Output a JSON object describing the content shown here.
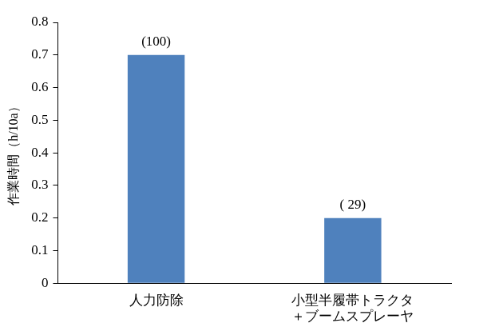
{
  "chart_data": {
    "type": "bar",
    "y_label": "作業時間（h/10a）",
    "categories": [
      "人力防除",
      "小型半履帯トラクタ＋ブームスプレーヤ"
    ],
    "values": [
      0.7,
      0.2
    ],
    "annotations": [
      "(100)",
      "( 29)"
    ],
    "color": "#4f81bd",
    "ylim": [
      0,
      0.8
    ],
    "yticks": [
      0,
      0.1,
      0.2,
      0.3,
      0.4,
      0.5,
      0.6,
      0.7,
      0.8
    ],
    "grid": false,
    "data_labels": false
  }
}
